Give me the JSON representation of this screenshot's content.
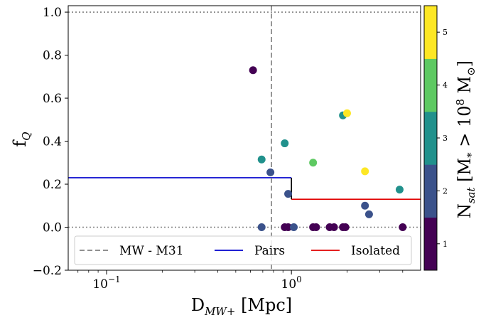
{
  "chart_data": {
    "type": "scatter",
    "xlabel_main": "D",
    "xlabel_sub": "MW+",
    "xlabel_unit": " [Mpc]",
    "ylabel_main": "f",
    "ylabel_sub": "Q",
    "xscale": "log",
    "xlim": [
      0.062,
      5.0
    ],
    "ylim": [
      -0.2,
      1.03
    ],
    "y_ticks": [
      {
        "value": -0.2,
        "label": "−0.2"
      },
      {
        "value": 0.0,
        "label": "0.0"
      },
      {
        "value": 0.2,
        "label": "0.2"
      },
      {
        "value": 0.4,
        "label": "0.4"
      },
      {
        "value": 0.6,
        "label": "0.6"
      },
      {
        "value": 0.8,
        "label": "0.8"
      },
      {
        "value": 1.0,
        "label": "1.0"
      }
    ],
    "x_ticks": [
      {
        "value": 0.1,
        "base": "10",
        "exp": "−1"
      },
      {
        "value": 1.0,
        "base": "10",
        "exp": "0"
      }
    ],
    "reference_lines": {
      "mw_m31_x": 0.78,
      "hlines_dotted": [
        0.0,
        1.0
      ],
      "pairs": {
        "x0": 0.062,
        "x1": 1.0,
        "y": 0.23
      },
      "isolated": {
        "x0": 1.0,
        "x1": 5.0,
        "y": 0.13
      },
      "connector": {
        "x": 1.0,
        "y0": 0.13,
        "y1": 0.23
      }
    },
    "points": [
      {
        "x": 0.62,
        "y": 0.73,
        "nsat": 1
      },
      {
        "x": 0.69,
        "y": 0.315,
        "nsat": 3
      },
      {
        "x": 0.77,
        "y": 0.255,
        "nsat": 2
      },
      {
        "x": 0.69,
        "y": 0.0,
        "nsat": 2
      },
      {
        "x": 0.92,
        "y": 0.39,
        "nsat": 3
      },
      {
        "x": 0.96,
        "y": 0.155,
        "nsat": 2
      },
      {
        "x": 0.92,
        "y": 0.0,
        "nsat": 1
      },
      {
        "x": 0.96,
        "y": 0.0,
        "nsat": 1
      },
      {
        "x": 1.03,
        "y": 0.0,
        "nsat": 2
      },
      {
        "x": 1.31,
        "y": 0.3,
        "nsat": 4
      },
      {
        "x": 1.31,
        "y": 0.0,
        "nsat": 1
      },
      {
        "x": 1.36,
        "y": 0.0,
        "nsat": 1
      },
      {
        "x": 1.61,
        "y": 0.0,
        "nsat": 1
      },
      {
        "x": 1.7,
        "y": 0.0,
        "nsat": 1
      },
      {
        "x": 1.9,
        "y": 0.52,
        "nsat": 3
      },
      {
        "x": 2.0,
        "y": 0.53,
        "nsat": 5
      },
      {
        "x": 1.9,
        "y": 0.0,
        "nsat": 1
      },
      {
        "x": 1.96,
        "y": 0.0,
        "nsat": 1
      },
      {
        "x": 2.5,
        "y": 0.26,
        "nsat": 5
      },
      {
        "x": 2.5,
        "y": 0.1,
        "nsat": 2
      },
      {
        "x": 2.63,
        "y": 0.06,
        "nsat": 2
      },
      {
        "x": 3.85,
        "y": 0.175,
        "nsat": 3
      },
      {
        "x": 4.0,
        "y": 0.0,
        "nsat": 1
      }
    ],
    "legend": {
      "placement": "lower-left",
      "entries": [
        {
          "label": "MW - M31",
          "style": "dashed",
          "color": "#808080"
        },
        {
          "label": "Pairs",
          "style": "solid",
          "color": "#0000cd"
        },
        {
          "label": "Isolated",
          "style": "solid",
          "color": "#e00000"
        }
      ]
    },
    "colorbar": {
      "label_main": "N",
      "label_sub": "sat",
      "label_rest": " [M",
      "label_sub2": "*",
      "label_tail": " > 10",
      "label_exp": "8",
      "label_end": " M",
      "label_sun": "⊙",
      "label_close": "]",
      "levels": [
        1,
        2,
        3,
        4,
        5
      ],
      "tick_labels": [
        "1",
        "2",
        "3",
        "4",
        "5"
      ],
      "colors": [
        "#440154",
        "#3b528b",
        "#21918c",
        "#5ec962",
        "#fde725"
      ]
    }
  }
}
